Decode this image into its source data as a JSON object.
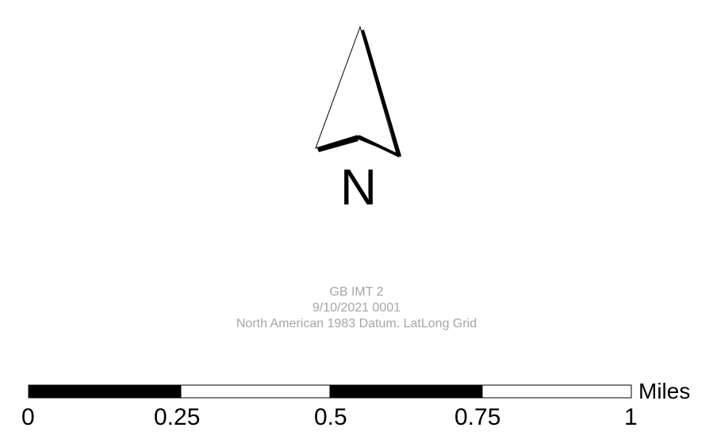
{
  "north_arrow": {
    "letter": "N",
    "icon": "north-arrow-icon"
  },
  "info": {
    "title": "GB IMT 2",
    "date": "9/10/2021 0001",
    "datum": "North American 1983 Datum. LatLong Grid",
    "text_color": "#a6a6a6"
  },
  "scale_bar": {
    "units": "Miles",
    "ticks": [
      "0",
      "0.25",
      "0.5",
      "0.75",
      "1"
    ],
    "segments": [
      "filled",
      "empty",
      "filled",
      "empty"
    ]
  }
}
